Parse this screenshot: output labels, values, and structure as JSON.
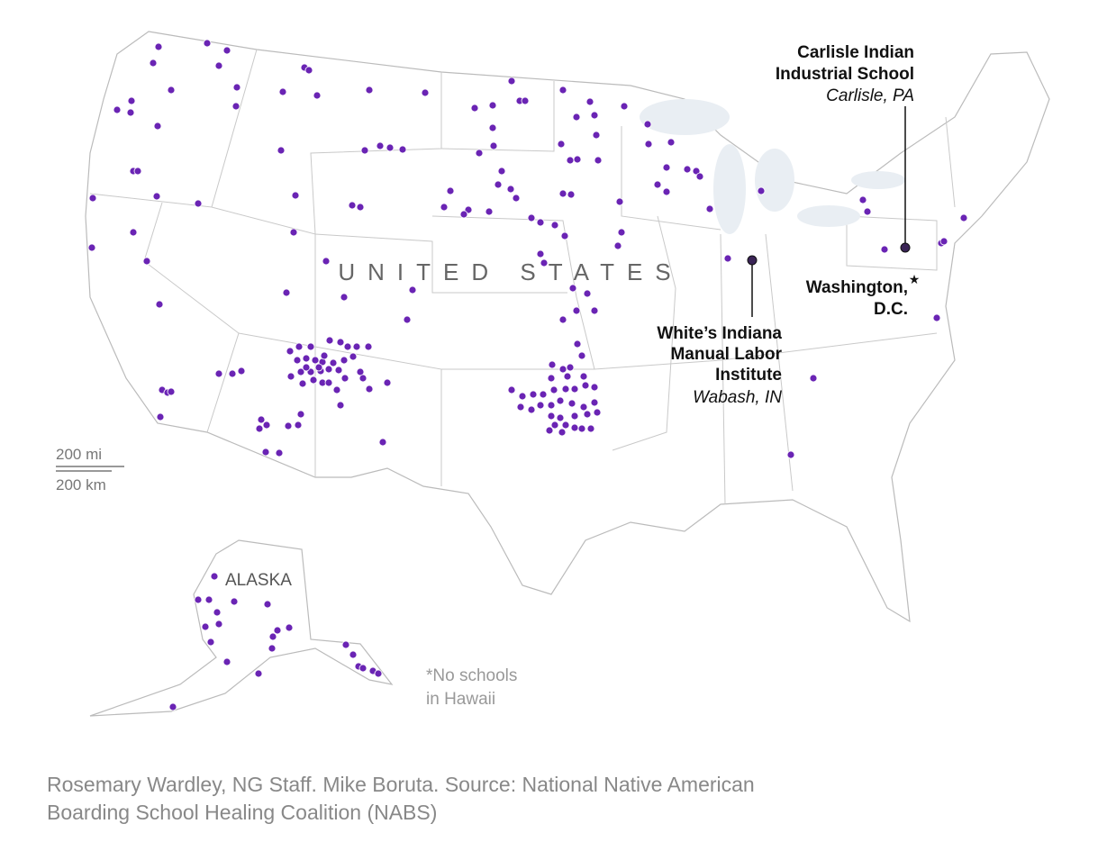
{
  "map": {
    "country_label": "UNITED STATES",
    "alaska_label": "ALASKA",
    "callouts": [
      {
        "lines": [
          "Carlisle Indian",
          "Industrial School"
        ],
        "place": "Carlisle, PA"
      },
      {
        "lines": [
          "White’s Indiana",
          "Manual Labor",
          "Institute"
        ],
        "place": "Wabash, IN"
      },
      {
        "lines": [
          "Washington,",
          "D.C."
        ]
      }
    ],
    "scale": [
      "200 mi",
      "200 km"
    ],
    "note": [
      "*No schools",
      "in Hawaii"
    ]
  },
  "credit": [
    "Rosemary Wardley, NG Staff. Mike Boruta. Source: National Native American",
    "Boarding School Healing Coalition (NABS)"
  ]
}
